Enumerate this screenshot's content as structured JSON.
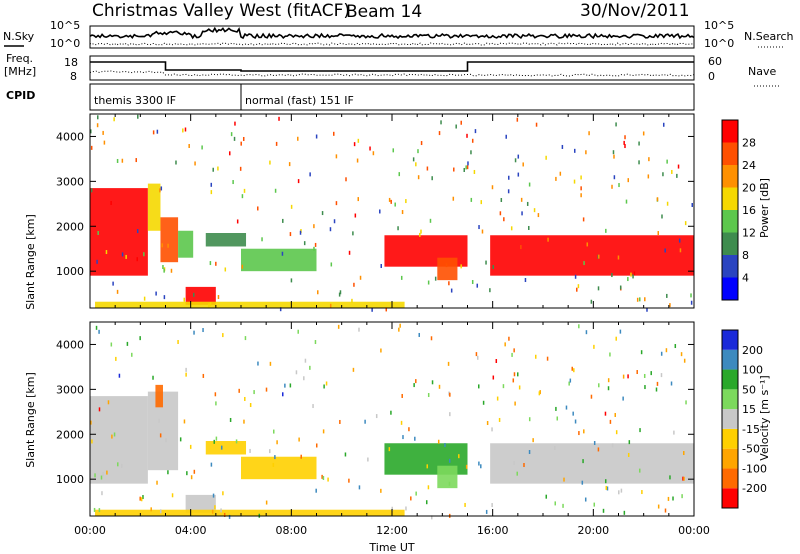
{
  "header": {
    "station": "Christmas Valley West (fitACF)",
    "beam": "Beam 14",
    "date": "30/Nov/2011"
  },
  "strip_labels": {
    "nsky": "N.Sky",
    "nsky_ticks": [
      "10^5",
      "10^0"
    ],
    "nsearch": "N.Search",
    "nsearch_ticks": [
      "10^5",
      "10^0"
    ],
    "freq_line1": "Freq.",
    "freq_line2": "[MHz]",
    "freq_ticks": [
      "18",
      "8"
    ],
    "nave": "Nave",
    "nave_ticks": [
      "60",
      "0"
    ],
    "cpid": "CPID"
  },
  "cpid_segments": [
    {
      "label": "themis 3300 IF",
      "start_hour": 0,
      "end_hour": 6
    },
    {
      "label": "normal (fast) 151 IF",
      "start_hour": 6,
      "end_hour": 24
    }
  ],
  "colors": {
    "power_scale": [
      "#0000ff",
      "#2a44c0",
      "#3e8c4e",
      "#5cc74d",
      "#f5d800",
      "#ff9000",
      "#ff5000",
      "#ff0000"
    ],
    "velocity_scale": [
      "#ff0000",
      "#ff6a00",
      "#ffa500",
      "#ffd000",
      "#c8c8c8",
      "#7cd95c",
      "#2aa82a",
      "#3d8abf",
      "#1a2ad9"
    ]
  },
  "chart_data": {
    "type": "heatmap",
    "x_axis": {
      "label": "Time UT",
      "range_hours": [
        0,
        24
      ],
      "tick_labels": [
        "00:00",
        "04:00",
        "08:00",
        "12:00",
        "16:00",
        "20:00",
        "00:00"
      ]
    },
    "y_axis": {
      "label": "Slant Range [km]",
      "range_km": [
        180,
        4500
      ],
      "tick_labels": [
        "1000",
        "2000",
        "3000",
        "4000"
      ]
    },
    "panels": [
      {
        "name": "power",
        "colorbar_label": "Power [dB]",
        "colorbar_ticks": [
          "28",
          "24",
          "20",
          "16",
          "12",
          "8",
          "4"
        ],
        "colorbar_range": [
          0,
          32
        ],
        "regions": [
          {
            "t0": 0.0,
            "t1": 2.3,
            "r0": 900,
            "r1": 2850,
            "value": 28
          },
          {
            "t0": 2.3,
            "t1": 2.8,
            "r0": 1900,
            "r1": 2950,
            "value": 18
          },
          {
            "t0": 2.8,
            "t1": 3.5,
            "r0": 1200,
            "r1": 2200,
            "value": 26
          },
          {
            "t0": 3.5,
            "t1": 4.1,
            "r0": 1300,
            "r1": 1900,
            "value": 12
          },
          {
            "t0": 3.8,
            "t1": 5.0,
            "r0": 250,
            "r1": 650,
            "value": 28
          },
          {
            "t0": 4.6,
            "t1": 6.2,
            "r0": 1550,
            "r1": 1850,
            "value": 10
          },
          {
            "t0": 6.0,
            "t1": 9.0,
            "r0": 1000,
            "r1": 1500,
            "value": 12
          },
          {
            "t0": 11.7,
            "t1": 15.0,
            "r0": 1100,
            "r1": 1800,
            "value": 28
          },
          {
            "t0": 13.8,
            "t1": 14.6,
            "r0": 800,
            "r1": 1300,
            "value": 26
          },
          {
            "t0": 15.9,
            "t1": 24.0,
            "r0": 900,
            "r1": 1800,
            "value": 28
          },
          {
            "t0": 0.2,
            "t1": 12.5,
            "r0": 180,
            "r1": 320,
            "value": 18
          }
        ]
      },
      {
        "name": "velocity",
        "colorbar_label": "Velocity [m s⁻¹]",
        "colorbar_ticks": [
          "200",
          "100",
          "50",
          "15",
          "-15",
          "-50",
          "-100",
          "-200"
        ],
        "colorbar_range": [
          -250,
          250
        ],
        "regions": [
          {
            "t0": 0.0,
            "t1": 2.3,
            "r0": 900,
            "r1": 2850,
            "value": 0
          },
          {
            "t0": 2.3,
            "t1": 3.5,
            "r0": 1200,
            "r1": 2950,
            "value": -5
          },
          {
            "t0": 2.6,
            "t1": 2.9,
            "r0": 2600,
            "r1": 3100,
            "value": -180
          },
          {
            "t0": 3.8,
            "t1": 5.0,
            "r0": 250,
            "r1": 650,
            "value": 0
          },
          {
            "t0": 4.6,
            "t1": 6.2,
            "r0": 1550,
            "r1": 1850,
            "value": -40
          },
          {
            "t0": 6.0,
            "t1": 9.0,
            "r0": 1000,
            "r1": 1500,
            "value": -40
          },
          {
            "t0": 11.7,
            "t1": 15.0,
            "r0": 1100,
            "r1": 1800,
            "value": 100
          },
          {
            "t0": 13.8,
            "t1": 14.6,
            "r0": 800,
            "r1": 1300,
            "value": 80
          },
          {
            "t0": 15.9,
            "t1": 24.0,
            "r0": 900,
            "r1": 1800,
            "value": 0
          },
          {
            "t0": 0.2,
            "t1": 12.5,
            "r0": 180,
            "r1": 320,
            "value": -40
          }
        ]
      }
    ]
  }
}
